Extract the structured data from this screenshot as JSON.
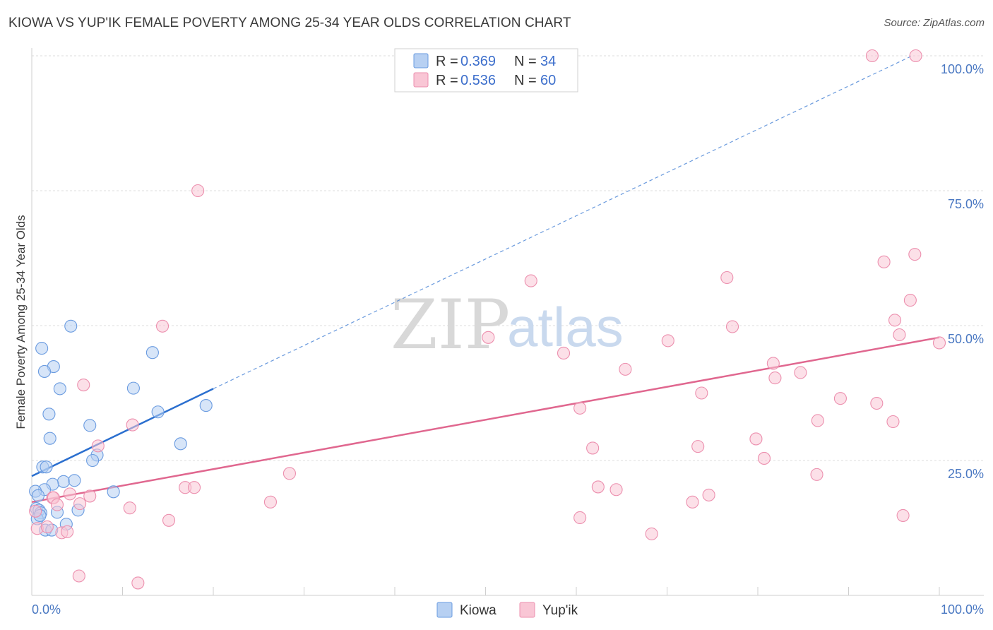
{
  "title": "KIOWA VS YUP'IK FEMALE POVERTY AMONG 25-34 YEAR OLDS CORRELATION CHART",
  "source": "Source: ZipAtlas.com",
  "watermark": {
    "zip": "ZIP",
    "atlas": "atlas"
  },
  "colors": {
    "kiowa_fill": "#b7d0f2",
    "kiowa_stroke": "#6a9be0",
    "kiowa_line": "#2b6fcf",
    "yupik_fill": "#f9c6d5",
    "yupik_stroke": "#ec8fae",
    "yupik_line": "#e0678f",
    "tick_text": "#4a78c2",
    "grid": "#dcdcdc"
  },
  "legend": {
    "rows": [
      {
        "r_label": "R = ",
        "r_value": "0.369",
        "n_label": "N = ",
        "n_value": "34"
      },
      {
        "r_label": "R = ",
        "r_value": "0.536",
        "n_label": "N = ",
        "n_value": "60"
      }
    ]
  },
  "bottom_legend": {
    "kiowa": "Kiowa",
    "yupik": "Yup'ik"
  },
  "chart_data": {
    "type": "scatter",
    "title": "KIOWA VS YUP'IK FEMALE POVERTY AMONG 25-34 YEAR OLDS CORRELATION CHART",
    "xlabel": "",
    "ylabel": "Female Poverty Among 25-34 Year Olds",
    "xlim": [
      0,
      100
    ],
    "ylim": [
      0,
      100
    ],
    "x_tick_labels": [
      "0.0%",
      "100.0%"
    ],
    "y_ticks": [
      25,
      50,
      75,
      100
    ],
    "y_tick_labels": [
      "25.0%",
      "50.0%",
      "75.0%",
      "100.0%"
    ],
    "grid": true,
    "series": [
      {
        "name": "Kiowa",
        "r": 0.369,
        "n": 34,
        "trend": {
          "x0": 0,
          "y0": 22.1,
          "x1": 20,
          "y1": 38.3,
          "dash_to_x": 97,
          "dash_to_y": 100
        },
        "points": [
          [
            4.3,
            49.9
          ],
          [
            1.1,
            45.8
          ],
          [
            13.3,
            45.0
          ],
          [
            2.4,
            42.4
          ],
          [
            1.4,
            41.5
          ],
          [
            3.1,
            38.3
          ],
          [
            11.2,
            38.4
          ],
          [
            19.2,
            35.2
          ],
          [
            1.9,
            33.6
          ],
          [
            13.9,
            34.0
          ],
          [
            6.4,
            31.5
          ],
          [
            2.0,
            29.1
          ],
          [
            16.4,
            28.1
          ],
          [
            7.2,
            26.0
          ],
          [
            6.7,
            25.0
          ],
          [
            1.2,
            23.8
          ],
          [
            1.6,
            23.8
          ],
          [
            3.5,
            21.1
          ],
          [
            4.7,
            21.3
          ],
          [
            2.3,
            20.6
          ],
          [
            1.4,
            19.6
          ],
          [
            0.4,
            19.3
          ],
          [
            0.7,
            18.5
          ],
          [
            9.0,
            19.2
          ],
          [
            0.5,
            16.1
          ],
          [
            0.8,
            15.8
          ],
          [
            1.0,
            15.3
          ],
          [
            2.8,
            15.4
          ],
          [
            5.1,
            15.8
          ],
          [
            0.6,
            14.2
          ],
          [
            3.8,
            13.2
          ],
          [
            1.5,
            12.1
          ],
          [
            2.2,
            12.1
          ],
          [
            0.9,
            14.8
          ]
        ]
      },
      {
        "name": "Yup'ik",
        "r": 0.536,
        "n": 60,
        "trend": {
          "x0": 0,
          "y0": 17.3,
          "x1": 100,
          "y1": 47.8
        },
        "points": [
          [
            92.6,
            100.0
          ],
          [
            97.4,
            100.0
          ],
          [
            18.3,
            75.0
          ],
          [
            97.3,
            63.2
          ],
          [
            93.9,
            61.8
          ],
          [
            55.0,
            58.3
          ],
          [
            76.6,
            58.9
          ],
          [
            96.8,
            54.7
          ],
          [
            14.4,
            49.9
          ],
          [
            95.1,
            51.0
          ],
          [
            77.2,
            49.8
          ],
          [
            95.6,
            48.3
          ],
          [
            50.3,
            47.8
          ],
          [
            70.1,
            47.2
          ],
          [
            100.0,
            46.8
          ],
          [
            58.6,
            44.9
          ],
          [
            65.4,
            41.9
          ],
          [
            81.7,
            43.0
          ],
          [
            84.7,
            41.3
          ],
          [
            81.9,
            40.3
          ],
          [
            5.7,
            39.0
          ],
          [
            73.8,
            37.5
          ],
          [
            89.1,
            36.5
          ],
          [
            93.1,
            35.6
          ],
          [
            60.4,
            34.7
          ],
          [
            11.1,
            31.6
          ],
          [
            86.6,
            32.4
          ],
          [
            94.9,
            32.2
          ],
          [
            7.3,
            27.7
          ],
          [
            79.8,
            29.0
          ],
          [
            61.8,
            27.3
          ],
          [
            73.4,
            27.6
          ],
          [
            80.7,
            25.4
          ],
          [
            28.4,
            22.6
          ],
          [
            86.5,
            22.4
          ],
          [
            16.9,
            20.0
          ],
          [
            17.9,
            20.0
          ],
          [
            6.4,
            18.4
          ],
          [
            62.4,
            20.1
          ],
          [
            64.4,
            19.6
          ],
          [
            74.6,
            18.6
          ],
          [
            2.3,
            18.1
          ],
          [
            2.4,
            18.1
          ],
          [
            4.2,
            18.8
          ],
          [
            5.3,
            17.0
          ],
          [
            26.3,
            17.3
          ],
          [
            72.8,
            17.3
          ],
          [
            2.8,
            16.8
          ],
          [
            10.8,
            16.2
          ],
          [
            0.4,
            15.6
          ],
          [
            15.1,
            13.9
          ],
          [
            60.4,
            14.4
          ],
          [
            96.0,
            14.8
          ],
          [
            0.6,
            12.4
          ],
          [
            1.7,
            12.7
          ],
          [
            3.3,
            11.6
          ],
          [
            3.9,
            11.8
          ],
          [
            68.3,
            11.4
          ],
          [
            5.2,
            3.6
          ],
          [
            11.7,
            2.3
          ]
        ]
      }
    ]
  }
}
